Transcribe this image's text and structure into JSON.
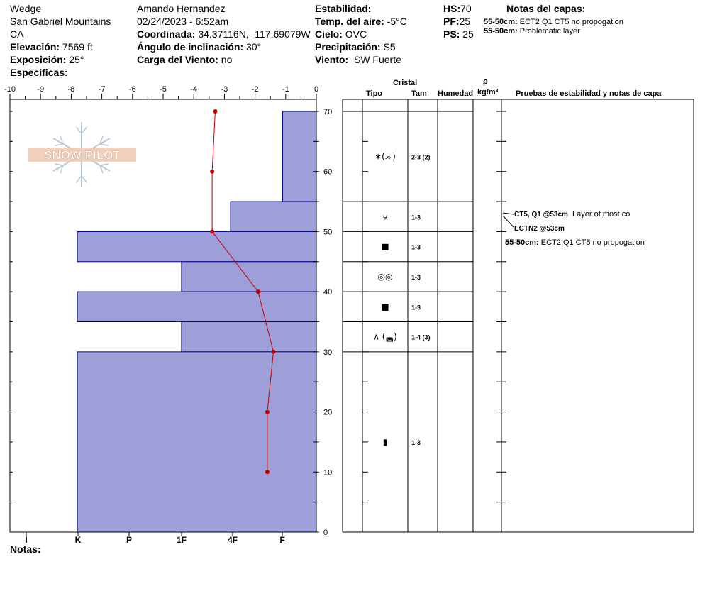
{
  "header": {
    "location": "Wedge",
    "range": "San Gabriel Mountains",
    "state": "CA",
    "elevation_label": "Elevación:",
    "elevation_value": "7569 ft",
    "aspect_label": "Exposición:",
    "aspect_value": "25°",
    "specifics_label": "Especificas:",
    "observer": "Amando  Hernandez",
    "datetime": "02/24/2023 - 6:52am",
    "coord_label": "Coordinada:",
    "coord_value": "34.37116N, -117.69079W",
    "slope_label": "Ángulo de inclinación:",
    "slope_value": "30°",
    "wind_load_label": "Carga del Viento:",
    "wind_load_value": "no",
    "stability_label": "Estabilidad:",
    "air_temp_label": "Temp. del aire:",
    "air_temp_value": "-5°C",
    "sky_label": "Cielo:",
    "sky_value": "OVC",
    "precip_label": "Precipitación:",
    "precip_value": "S5",
    "wind_label": "Viento:",
    "wind_value": "SW Fuerte",
    "hs_label": "HS:",
    "hs_value": "70",
    "pf_label": "PF:",
    "pf_value": "25",
    "ps_label": "PS:",
    "ps_value": "25",
    "layer_notes_title": "Notas del capas:",
    "layer_notes": [
      {
        "range": "55-50cm:",
        "text": "ECT2 Q1  CT5 no propogation"
      },
      {
        "range": "55-50cm:",
        "text": "Problematic layer"
      }
    ]
  },
  "logo_text": "SNOW PILOT",
  "chart_data": {
    "type": "bar",
    "temp_axis": {
      "ticks": [
        "-10",
        "-9",
        "-8",
        "-7",
        "-6",
        "-5",
        "-4",
        "-3",
        "-2",
        "-1",
        "0"
      ],
      "range": [
        -10,
        0
      ]
    },
    "height_axis": {
      "ticks": [
        "0",
        "10",
        "20",
        "30",
        "40",
        "50",
        "60",
        "70"
      ],
      "range": [
        0,
        70
      ]
    },
    "hardness_axis": {
      "ticks": [
        "I",
        "K",
        "P",
        "1F",
        "4F",
        "F"
      ]
    },
    "hardness_layers": [
      {
        "top": 70,
        "bottom": 55,
        "temp_equiv": -1.1
      },
      {
        "top": 55,
        "bottom": 50,
        "temp_equiv": -2.8
      },
      {
        "top": 50,
        "bottom": 45,
        "temp_equiv": -7.8
      },
      {
        "top": 45,
        "bottom": 40,
        "temp_equiv": -4.4
      },
      {
        "top": 40,
        "bottom": 35,
        "temp_equiv": -7.8
      },
      {
        "top": 35,
        "bottom": 30,
        "temp_equiv": -4.4
      },
      {
        "top": 30,
        "bottom": 0,
        "temp_equiv": -7.8
      }
    ],
    "temperature_profile": [
      {
        "height": 70,
        "temp": -3.3
      },
      {
        "height": 60,
        "temp": -3.4
      },
      {
        "height": 50,
        "temp": -3.4
      },
      {
        "height": 40,
        "temp": -1.9
      },
      {
        "height": 30,
        "temp": -1.4
      },
      {
        "height": 20,
        "temp": -1.6
      },
      {
        "height": 10,
        "temp": -1.6
      }
    ],
    "colors": {
      "bars": "#9e9ed8",
      "bar_edge": "#00008b",
      "temp_line": "#c00000"
    }
  },
  "table": {
    "crystal_header": "Cristal",
    "type_header": "Tipo",
    "size_header": "Tam",
    "moisture_header": "Humedad",
    "density_symbol": "ρ",
    "density_unit": "kg/m³",
    "tests_header": "Pruebas de estabilidad y notas de capa",
    "layers": [
      {
        "top": 70,
        "bottom": 55,
        "type": "∗(ᨃ)",
        "size": "2-3 (2)"
      },
      {
        "top": 55,
        "bottom": 50,
        "type": "⩝",
        "size": "1-3"
      },
      {
        "top": 50,
        "bottom": 45,
        "type": "■",
        "size": "1-3"
      },
      {
        "top": 45,
        "bottom": 40,
        "type": "◎◎",
        "size": "1-3"
      },
      {
        "top": 40,
        "bottom": 35,
        "type": "■",
        "size": "1-3"
      },
      {
        "top": 35,
        "bottom": 30,
        "type": "∧ (◛)",
        "size": "1-4 (3)"
      },
      {
        "top": 30,
        "bottom": 0,
        "type": "▮",
        "size": "1-3"
      }
    ],
    "tests": [
      {
        "label": "CT5, Q1 @53cm",
        "note": "Layer of most co"
      },
      {
        "label": "ECTN2 @53cm",
        "note": ""
      }
    ],
    "layer_note": {
      "range": "55-50cm:",
      "text": "ECT2 Q1  CT5 no propogation"
    }
  },
  "footer": {
    "notes_label": "Notas:"
  }
}
